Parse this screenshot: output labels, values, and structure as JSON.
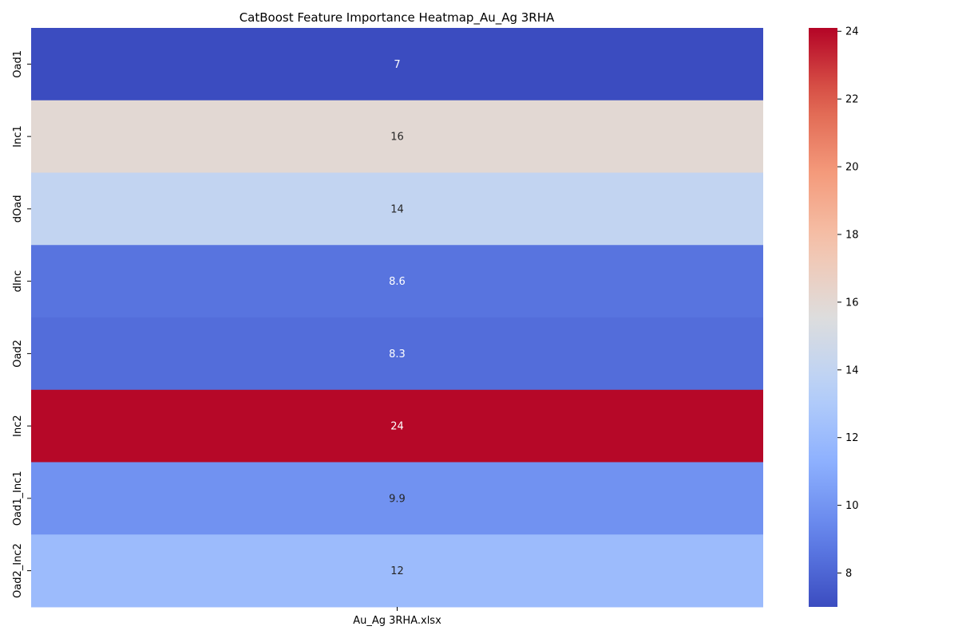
{
  "chart_data": {
    "type": "heatmap",
    "title": "CatBoost Feature Importance Heatmap_Au_Ag 3RHA",
    "xlabel": "",
    "ylabel": "",
    "columns": [
      "Au_Ag 3RHA.xlsx"
    ],
    "rows": [
      "Oad1",
      "Inc1",
      "dOad",
      "dInc",
      "Oad2",
      "Inc2",
      "Oad1_Inc1",
      "Oad2_Inc2"
    ],
    "values": [
      7.0,
      16.0,
      14.0,
      8.6,
      8.3,
      24.0,
      9.9,
      12.0
    ],
    "annotations": [
      "7",
      "16",
      "14",
      "8.6",
      "8.3",
      "24",
      "9.9",
      "12"
    ],
    "colormap": "coolwarm",
    "colorbar": {
      "range": [
        7.0,
        24.1
      ],
      "ticks": [
        8,
        10,
        12,
        14,
        16,
        18,
        20,
        22,
        24
      ],
      "tick_labels": [
        "8",
        "10",
        "12",
        "14",
        "16",
        "18",
        "20",
        "22",
        "24"
      ]
    },
    "grid": false,
    "legend": "colorbar-right"
  }
}
